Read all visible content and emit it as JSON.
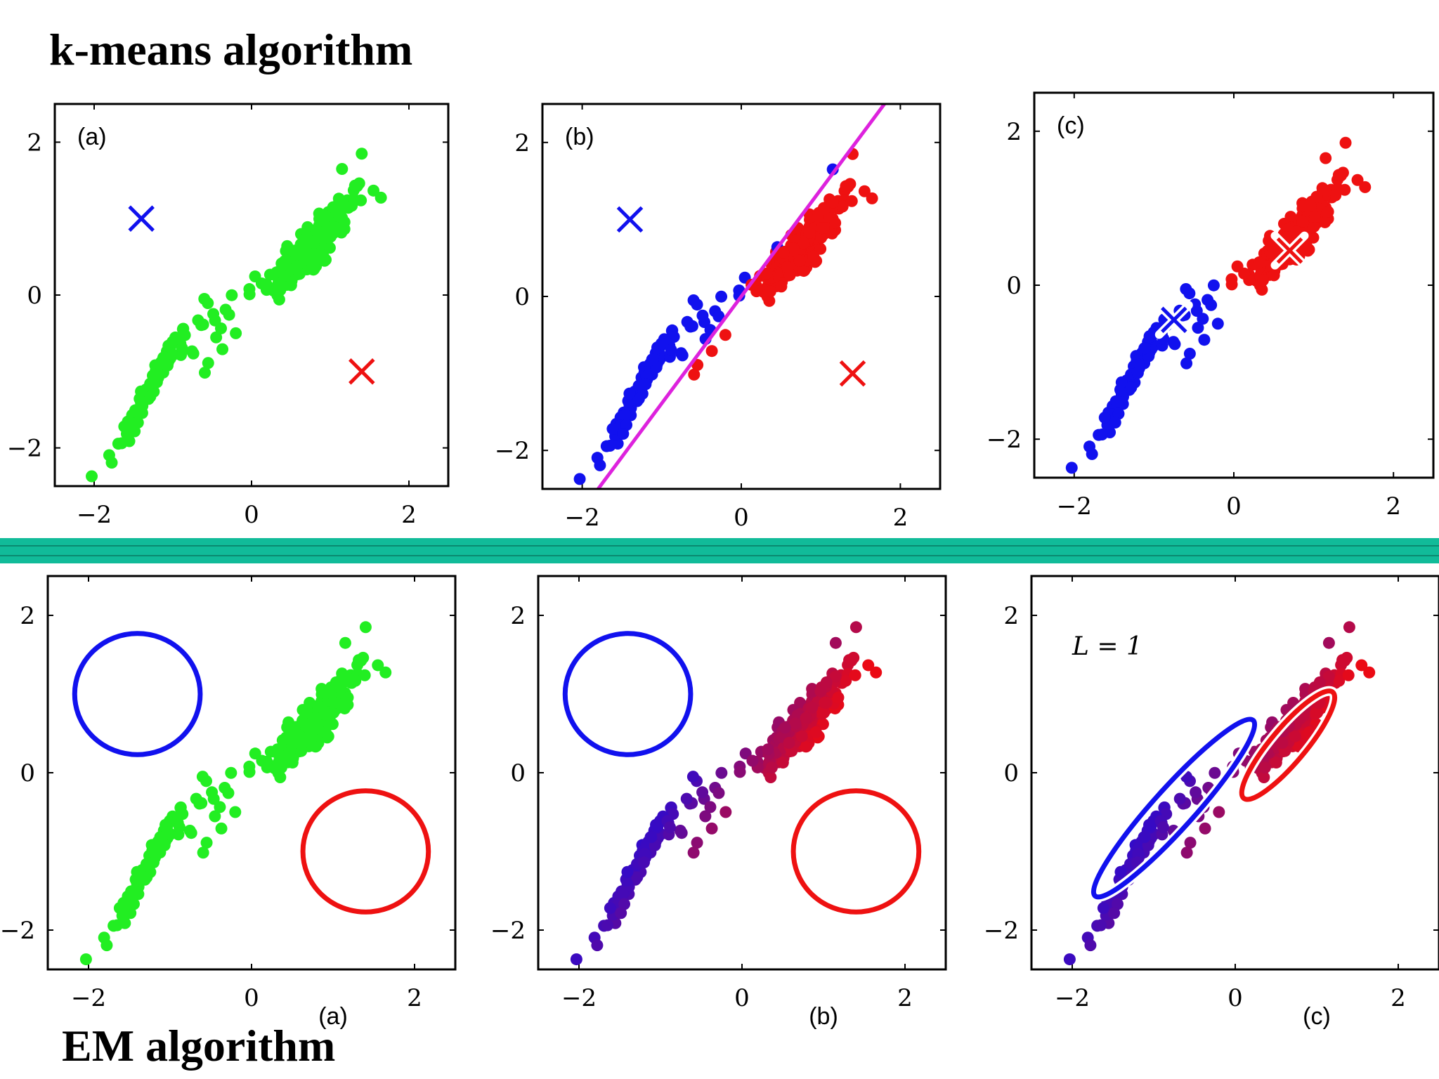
{
  "header": {
    "title": "k-means algorithm"
  },
  "footer": {
    "title": "EM algorithm"
  },
  "colors": {
    "green": "#22ee22",
    "blue": "#1111ee",
    "red": "#ee1111",
    "magenta": "#dd22dd",
    "divider": "#11bb99"
  },
  "chart_data": [
    {
      "type": "scatter",
      "panel": "(a)",
      "row": "k-means",
      "xlim": [
        -2.5,
        2.5
      ],
      "ylim": [
        -2.5,
        2.5
      ],
      "xticks": [
        "−2",
        "0",
        "2"
      ],
      "yticks": [
        "−2",
        "0",
        "2"
      ],
      "centers": [
        {
          "x": -1.4,
          "y": 1.0,
          "color": "blue"
        },
        {
          "x": 1.4,
          "y": -1.0,
          "color": "red"
        }
      ],
      "points_color": "green"
    },
    {
      "type": "scatter",
      "panel": "(b)",
      "row": "k-means",
      "xlim": [
        -2.5,
        2.5
      ],
      "ylim": [
        -2.5,
        2.5
      ],
      "xticks": [
        "−2",
        "0",
        "2"
      ],
      "yticks": [
        "−2",
        "0",
        "2"
      ],
      "centers": [
        {
          "x": -1.4,
          "y": 1.0,
          "color": "blue"
        },
        {
          "x": 1.4,
          "y": -1.0,
          "color": "red"
        }
      ],
      "decision_boundary": {
        "x1": -1.8,
        "y1": -2.5,
        "x2": 1.8,
        "y2": 2.5
      },
      "points_color": "assigned"
    },
    {
      "type": "scatter",
      "panel": "(c)",
      "row": "k-means",
      "xlim": [
        -2.5,
        2.5
      ],
      "ylim": [
        -2.5,
        2.5
      ],
      "xticks": [
        "−2",
        "0",
        "2"
      ],
      "yticks": [
        "−2",
        "0",
        "2"
      ],
      "centers": [
        {
          "x": -0.75,
          "y": -0.45,
          "color": "blue"
        },
        {
          "x": 0.7,
          "y": 0.45,
          "color": "red"
        }
      ],
      "points_color": "assigned"
    },
    {
      "type": "scatter",
      "panel": "(a)",
      "row": "EM",
      "xlim": [
        -2.5,
        2.5
      ],
      "ylim": [
        -2.5,
        2.5
      ],
      "xticks": [
        "−2",
        "0",
        "2"
      ],
      "yticks": [
        "−2",
        "0",
        "2"
      ],
      "ellipses": [
        {
          "x": -1.4,
          "y": 1.0,
          "rx": 0.77,
          "ry": 0.77,
          "angle": 0,
          "color": "blue"
        },
        {
          "x": 1.4,
          "y": -1.0,
          "rx": 0.77,
          "ry": 0.77,
          "angle": 0,
          "color": "red"
        }
      ],
      "points_color": "green"
    },
    {
      "type": "scatter",
      "panel": "(b)",
      "row": "EM",
      "xlim": [
        -2.5,
        2.5
      ],
      "ylim": [
        -2.5,
        2.5
      ],
      "xticks": [
        "−2",
        "0",
        "2"
      ],
      "yticks": [
        "−2",
        "0",
        "2"
      ],
      "ellipses": [
        {
          "x": -1.4,
          "y": 1.0,
          "rx": 0.77,
          "ry": 0.77,
          "angle": 0,
          "color": "blue"
        },
        {
          "x": 1.4,
          "y": -1.0,
          "rx": 0.77,
          "ry": 0.77,
          "angle": 0,
          "color": "red"
        }
      ],
      "points_color": "gradient"
    },
    {
      "type": "scatter",
      "panel": "(c)",
      "row": "EM",
      "annotation": "L = 1",
      "xlim": [
        -2.5,
        2.5
      ],
      "ylim": [
        -2.5,
        2.5
      ],
      "xticks": [
        "−2",
        "0",
        "2"
      ],
      "yticks": [
        "−2",
        "0",
        "2"
      ],
      "ellipses": [
        {
          "x": -0.75,
          "y": -0.45,
          "rx": 1.45,
          "ry": 0.26,
          "angle": 48,
          "color": "blue"
        },
        {
          "x": 0.65,
          "y": 0.35,
          "rx": 0.85,
          "ry": 0.22,
          "angle": 50,
          "color": "red"
        }
      ],
      "points_color": "gradient"
    }
  ]
}
